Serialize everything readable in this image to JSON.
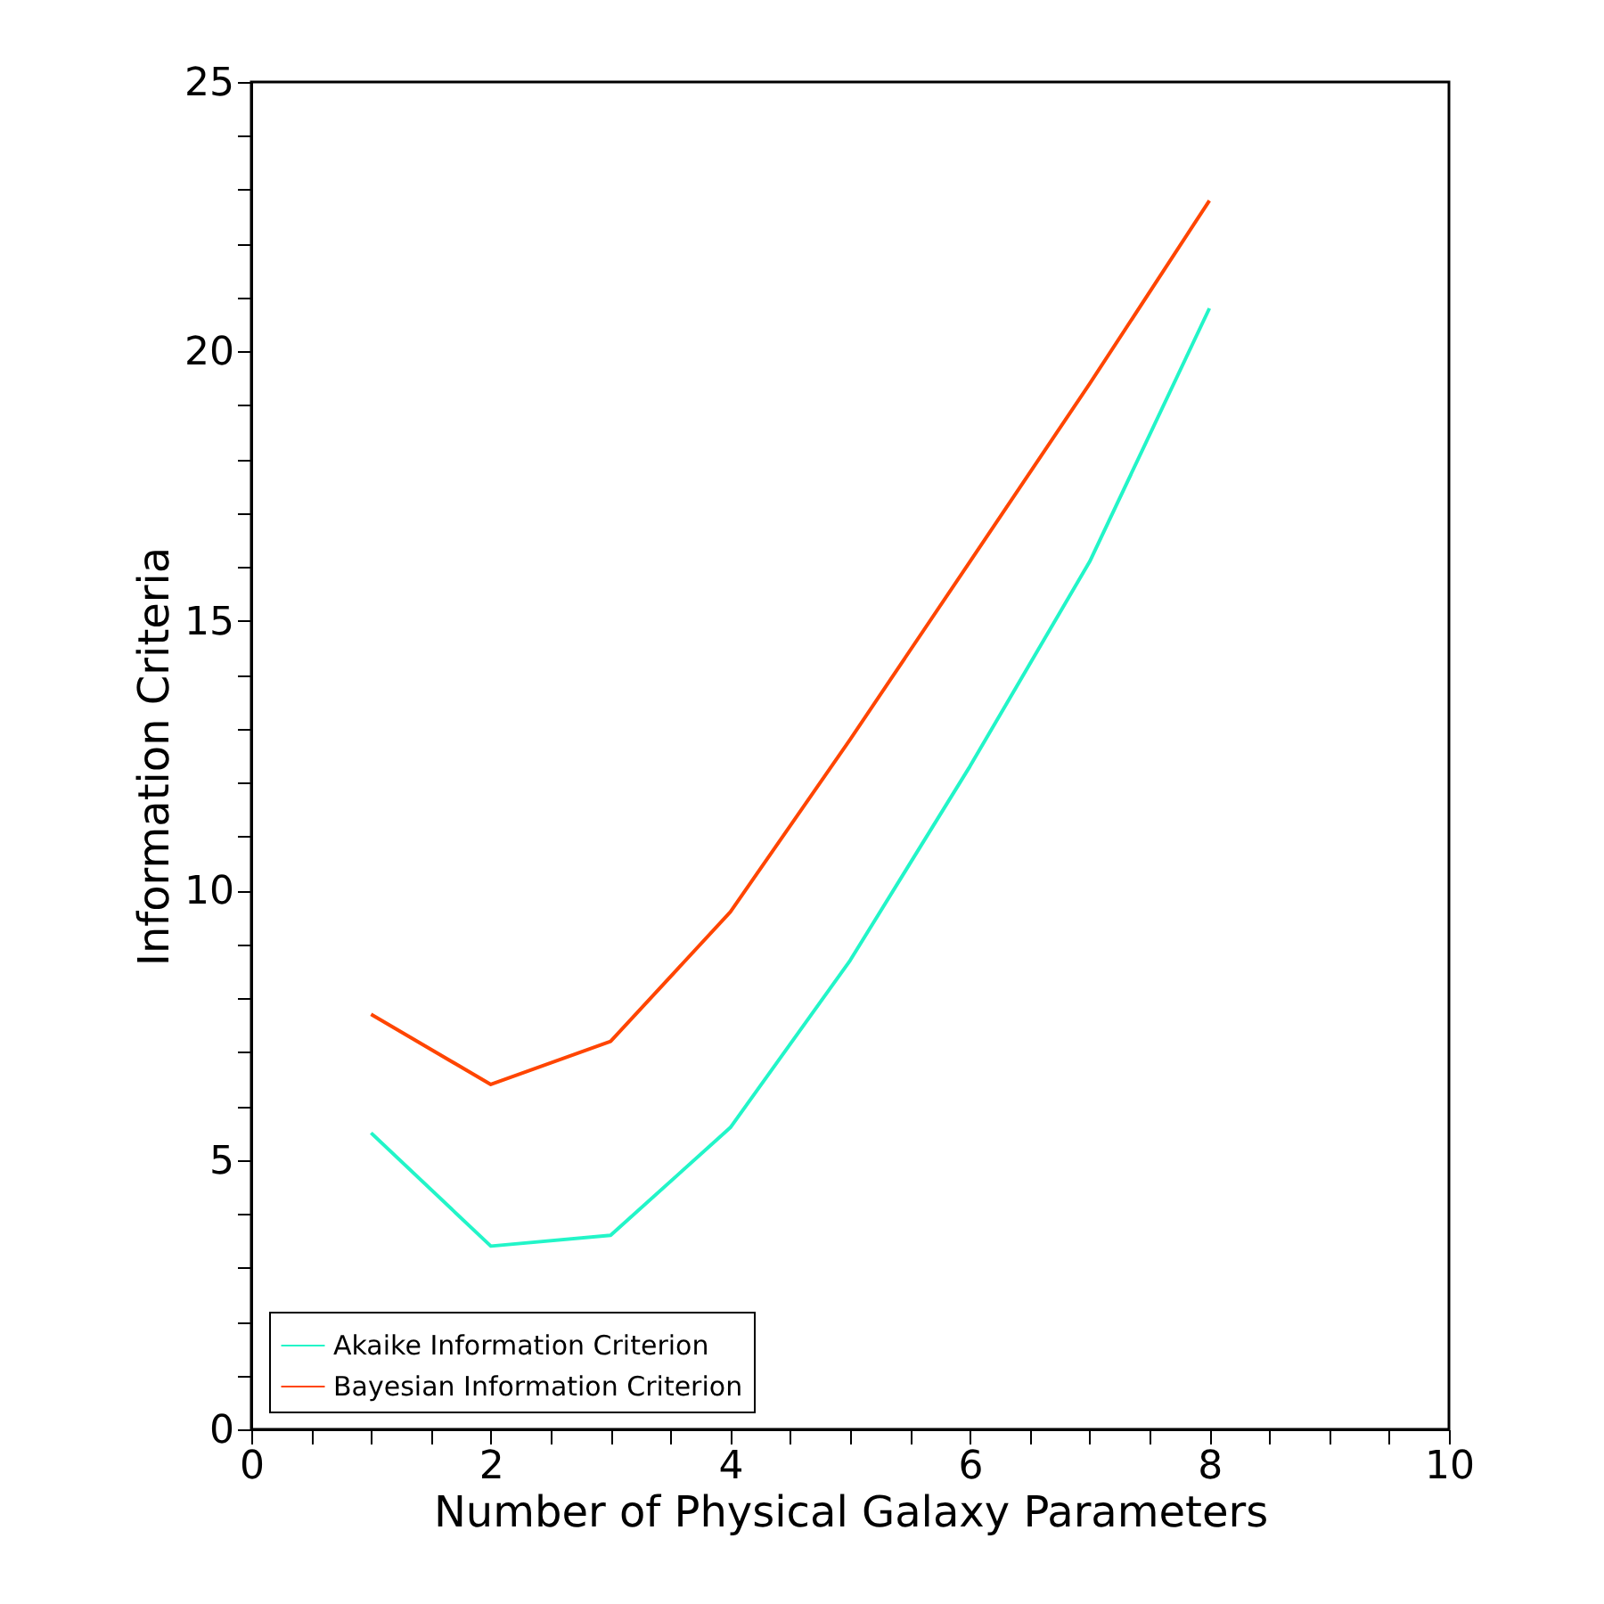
{
  "chart_data": {
    "type": "line",
    "xlabel": "Number of Physical Galaxy Parameters",
    "ylabel": "Information Criteria",
    "x": [
      1,
      2,
      3,
      4,
      5,
      6,
      7,
      8
    ],
    "series": [
      {
        "name": "Akaike Information Criterion",
        "color": "#22f5c8",
        "values": [
          5.5,
          3.4,
          3.6,
          5.6,
          8.7,
          12.3,
          16.1,
          20.8
        ]
      },
      {
        "name": "Bayesian Information Criterion",
        "color": "#ff4500",
        "values": [
          7.7,
          6.4,
          7.2,
          9.6,
          12.8,
          16.1,
          19.4,
          22.8
        ]
      }
    ],
    "xlim": [
      0,
      10
    ],
    "ylim": [
      0,
      25
    ],
    "xticks": [
      0,
      {
        "value": 0.5,
        "label": null
      },
      {
        "value": 1,
        "label": null
      },
      {
        "value": 1.5,
        "label": null
      },
      2,
      {
        "value": 2.5,
        "label": null
      },
      {
        "value": 3,
        "label": null
      },
      {
        "value": 3.5,
        "label": null
      },
      4,
      {
        "value": 4.5,
        "label": null
      },
      {
        "value": 5,
        "label": null
      },
      {
        "value": 5.5,
        "label": null
      },
      6,
      {
        "value": 6.5,
        "label": null
      },
      {
        "value": 7,
        "label": null
      },
      {
        "value": 7.5,
        "label": null
      },
      8,
      {
        "value": 8.5,
        "label": null
      },
      {
        "value": 9,
        "label": null
      },
      {
        "value": 9.5,
        "label": null
      },
      10
    ],
    "yticks": [
      0,
      {
        "value": 1,
        "label": null
      },
      {
        "value": 2,
        "label": null
      },
      {
        "value": 3,
        "label": null
      },
      {
        "value": 4,
        "label": null
      },
      5,
      {
        "value": 6,
        "label": null
      },
      {
        "value": 7,
        "label": null
      },
      {
        "value": 8,
        "label": null
      },
      {
        "value": 9,
        "label": null
      },
      10,
      {
        "value": 11,
        "label": null
      },
      {
        "value": 12,
        "label": null
      },
      {
        "value": 13,
        "label": null
      },
      {
        "value": 14,
        "label": null
      },
      15,
      {
        "value": 16,
        "label": null
      },
      {
        "value": 17,
        "label": null
      },
      {
        "value": 18,
        "label": null
      },
      {
        "value": 19,
        "label": null
      },
      20,
      {
        "value": 21,
        "label": null
      },
      {
        "value": 22,
        "label": null
      },
      {
        "value": 23,
        "label": null
      },
      {
        "value": 24,
        "label": null
      },
      25
    ],
    "grid": false,
    "legend": "bottom left",
    "marker": "none",
    "line_style": "solid"
  }
}
